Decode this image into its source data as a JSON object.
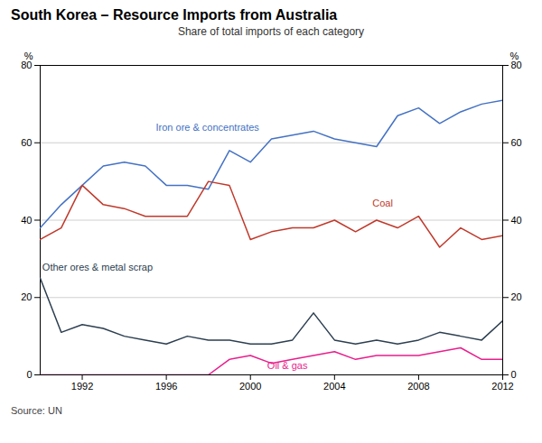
{
  "chart_data": {
    "type": "line",
    "title": "South Korea – Resource Imports from Australia",
    "subtitle": "Share of total imports of each category",
    "source": "Source: UN",
    "ylabel": "%",
    "y2label": "%",
    "x": [
      1990,
      1991,
      1992,
      1993,
      1994,
      1995,
      1996,
      1997,
      1998,
      1999,
      2000,
      2001,
      2002,
      2003,
      2004,
      2005,
      2006,
      2007,
      2008,
      2009,
      2010,
      2011,
      2012
    ],
    "xlim": [
      1990,
      2012
    ],
    "xticks": [
      1992,
      1996,
      2000,
      2004,
      2008,
      2012
    ],
    "ylim": [
      0,
      80
    ],
    "yticks": [
      0,
      20,
      40,
      60,
      80
    ],
    "y2lim": [
      0,
      80
    ],
    "y2ticks": [
      0,
      20,
      40,
      60,
      80
    ],
    "grid": true,
    "series": [
      {
        "name": "Iron ore & concentrates",
        "color": "#4472c4",
        "values": [
          38,
          44,
          49,
          54,
          55,
          54,
          49,
          49,
          48,
          58,
          55,
          61,
          62,
          63,
          61,
          60,
          59,
          67,
          69,
          65,
          68,
          70,
          71
        ]
      },
      {
        "name": "Coal",
        "color": "#c0392b",
        "values": [
          35,
          38,
          49,
          44,
          43,
          41,
          41,
          41,
          50,
          49,
          35,
          37,
          38,
          38,
          40,
          37,
          40,
          38,
          41,
          33,
          38,
          35,
          36
        ]
      },
      {
        "name": "Other ores & metal scrap",
        "color": "#2c3e50",
        "values": [
          25,
          11,
          13,
          12,
          10,
          9,
          8,
          10,
          9,
          9,
          8,
          8,
          9,
          16,
          9,
          8,
          9,
          8,
          9,
          11,
          10,
          9,
          14
        ]
      },
      {
        "name": "Oil & gas",
        "color": "#e91e8c",
        "values": [
          0,
          0,
          0,
          0,
          0,
          0,
          0,
          0,
          0,
          4,
          5,
          3,
          4,
          5,
          6,
          4,
          5,
          5,
          5,
          6,
          7,
          4,
          4
        ]
      }
    ],
    "annotations": [
      {
        "text": "Iron ore & concentrates",
        "x": 1995.5,
        "y": 63,
        "color": "#4472c4"
      },
      {
        "text": "Coal",
        "x": 2005.8,
        "y": 43.5,
        "color": "#c0392b"
      },
      {
        "text": "Other ores & metal scrap",
        "x": 1990.1,
        "y": 27,
        "color": "#2c3e50"
      },
      {
        "text": "Oil & gas",
        "x": 2000.8,
        "y": 1.5,
        "color": "#e91e8c"
      }
    ]
  }
}
